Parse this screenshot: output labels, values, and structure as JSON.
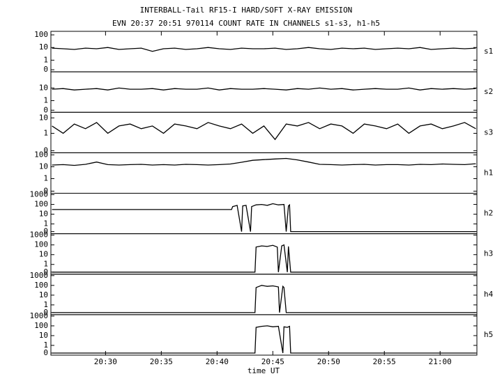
{
  "chart_data": {
    "type": "line",
    "title": "INTERBALL-Tail RF15-I HARD/SOFT X-RAY EMISSION",
    "subtitle": "EVN 20:37 20:51 970114  COUNT RATE IN CHANNELS s1-s3, h1-h5",
    "xlabel": "time UT",
    "xlim": [
      25.1,
      63.3
    ],
    "xticks": [
      {
        "value": 30,
        "label": "20:30"
      },
      {
        "value": 35,
        "label": "20:35"
      },
      {
        "value": 40,
        "label": "20:40"
      },
      {
        "value": 45,
        "label": "20:45"
      },
      {
        "value": 50,
        "label": "20:50"
      },
      {
        "value": 55,
        "label": "20:55"
      },
      {
        "value": 60,
        "label": "21:00"
      }
    ],
    "yscale": "log",
    "color": "#000000",
    "x": [
      25.2,
      26.2,
      27.2,
      28.2,
      29.2,
      30.2,
      31.2,
      32.2,
      33.2,
      34.2,
      35.2,
      36.2,
      37.2,
      38.2,
      39.2,
      40.2,
      41.2,
      42.2,
      43.2,
      44.2,
      45.2,
      46.2,
      47.2,
      48.2,
      49.2,
      50.2,
      51.2,
      52.2,
      53.2,
      54.2,
      55.2,
      56.2,
      57.2,
      58.2,
      59.2,
      60.2,
      61.2,
      62.2,
      63.2
    ],
    "panels": [
      {
        "name": "s1",
        "ylim": [
          0.12,
          190
        ],
        "yticks": [
          0,
          1,
          10,
          100
        ],
        "values": [
          9,
          8,
          7,
          9,
          8,
          10,
          7,
          8,
          9,
          5,
          8,
          9,
          7,
          8,
          10,
          8,
          7,
          9,
          8,
          8,
          9,
          7,
          8,
          10,
          8,
          7,
          9,
          8,
          9,
          7,
          8,
          9,
          8,
          10,
          7,
          8,
          9,
          8,
          9
        ]
      },
      {
        "name": "s2",
        "ylim": [
          0.12,
          190
        ],
        "yticks": [
          0,
          1,
          10
        ],
        "values": [
          8,
          9,
          7,
          8,
          9,
          7,
          10,
          8,
          8,
          9,
          7,
          9,
          8,
          8,
          10,
          7,
          9,
          8,
          8,
          9,
          8,
          7,
          9,
          8,
          10,
          8,
          9,
          7,
          8,
          9,
          8,
          8,
          10,
          7,
          9,
          8,
          9,
          8,
          9
        ]
      },
      {
        "name": "s3",
        "ylim": [
          0.055,
          23
        ],
        "yticks": [
          0,
          1,
          10
        ],
        "values": [
          3,
          1,
          4,
          2,
          5,
          1,
          3,
          4,
          2,
          3,
          1,
          4,
          3,
          2,
          5,
          3,
          2,
          4,
          1,
          3,
          0.4,
          4,
          3,
          5,
          2,
          4,
          3,
          1,
          4,
          3,
          2,
          4,
          1,
          3,
          4,
          2,
          3,
          5,
          2
        ]
      },
      {
        "name": "h1",
        "ylim": [
          0.059,
          150
        ],
        "yticks": [
          0,
          1,
          10,
          100
        ],
        "values": [
          14,
          15,
          13,
          16,
          25,
          15,
          14,
          15,
          16,
          14,
          15,
          14,
          16,
          15,
          14,
          15,
          17,
          24,
          35,
          40,
          45,
          50,
          38,
          25,
          16,
          15,
          14,
          15,
          16,
          14,
          15,
          15,
          14,
          16,
          15,
          17,
          16,
          15,
          18
        ]
      },
      {
        "name": "h2",
        "ylim": [
          0.1,
          1400
        ],
        "yticks": [
          0,
          1,
          10,
          100,
          1000
        ],
        "x": [
          25.2,
          41.3,
          41.4,
          41.8,
          42.2,
          42.3,
          42.6,
          43.0,
          43.1,
          43.5,
          44.0,
          44.5,
          45.0,
          45.5,
          46.0,
          46.2,
          46.4,
          46.5,
          46.6,
          63.2
        ],
        "values": [
          30,
          30,
          60,
          80,
          0,
          70,
          80,
          0,
          60,
          90,
          100,
          80,
          120,
          90,
          100,
          0,
          70,
          90,
          0,
          0
        ]
      },
      {
        "name": "h3",
        "ylim": [
          0.1,
          1400
        ],
        "yticks": [
          0,
          1,
          10,
          100,
          1000
        ],
        "x": [
          25.2,
          43.4,
          43.5,
          44.0,
          44.5,
          45.0,
          45.4,
          45.5,
          45.8,
          46.0,
          46.3,
          46.4,
          46.6,
          63.2
        ],
        "values": [
          0,
          0,
          60,
          80,
          70,
          90,
          60,
          0,
          80,
          100,
          0,
          70,
          0,
          0
        ]
      },
      {
        "name": "h4",
        "ylim": [
          0.1,
          1400
        ],
        "yticks": [
          0,
          1,
          10,
          100,
          1000
        ],
        "x": [
          25.2,
          43.4,
          43.5,
          44.0,
          44.5,
          45.0,
          45.5,
          45.6,
          45.9,
          46.0,
          46.2,
          46.3,
          63.2
        ],
        "values": [
          0,
          0,
          60,
          100,
          80,
          90,
          70,
          0,
          80,
          60,
          0,
          0,
          0
        ]
      },
      {
        "name": "h5",
        "ylim": [
          0.1,
          1400
        ],
        "yticks": [
          0,
          1,
          10,
          100,
          1000
        ],
        "x": [
          25.2,
          43.4,
          43.5,
          44.0,
          44.5,
          45.0,
          45.5,
          45.9,
          46.0,
          46.3,
          46.5,
          46.6,
          63.2
        ],
        "values": [
          0,
          0,
          70,
          90,
          100,
          80,
          90,
          0,
          80,
          70,
          90,
          0,
          0
        ]
      }
    ]
  }
}
